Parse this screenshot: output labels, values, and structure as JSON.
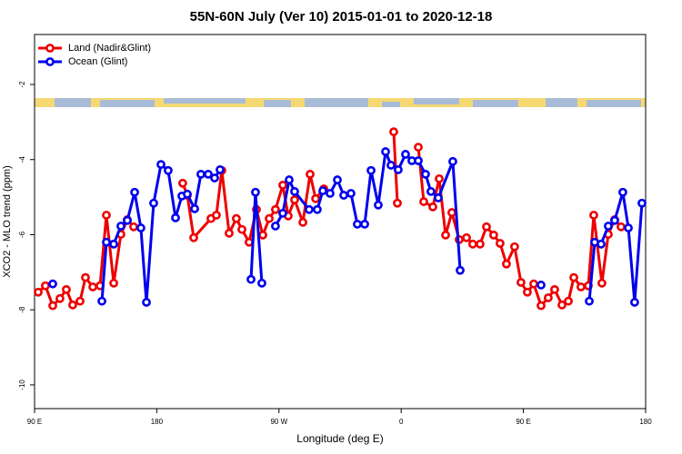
{
  "chart_data": {
    "type": "line",
    "title": "55N-60N July (Ver 10)   2015-01-01 to 2020-12-18",
    "xlabel": "Longitude (deg E)",
    "ylabel": "XCO2 - MLO trend (ppm)",
    "xlim": [
      90,
      540
    ],
    "xticks": [
      {
        "value": 90,
        "label": "90 E"
      },
      {
        "value": 180,
        "label": "180"
      },
      {
        "value": 270,
        "label": "90 W"
      },
      {
        "value": 360,
        "label": "0"
      },
      {
        "value": 450,
        "label": "90 E"
      },
      {
        "value": 540,
        "label": "180"
      }
    ],
    "ylim": [
      -10.63,
      -0.67
    ],
    "yticks": [
      -2,
      -4,
      -6,
      -8,
      -10
    ],
    "legend": "upper left",
    "series": [
      {
        "name": "Land (Nadir&Glint)",
        "color": "#ee0000",
        "x": [
          92.7,
          98.0,
          103.4,
          108.7,
          113.4,
          118.1,
          123.5,
          127.5,
          132.9,
          138.2,
          142.9,
          148.3,
          153.6,
          158.3,
          163.0,
          null,
          199.1,
          202.5,
          207.2,
          219.9,
          223.9,
          227.9,
          233.3,
          238.6,
          242.7,
          248.0,
          253.4,
          258.1,
          262.8,
          267.4,
          272.8,
          276.8,
          281.5,
          287.6,
          292.9,
          297.0,
          303.0,
          null,
          354.5,
          357.2,
          null,
          372.6,
          376.6,
          383.3,
          388.0,
          392.7,
          397.3,
          402.7,
          408.1,
          412.7,
          418.1,
          422.8,
          428.1,
          432.8,
          437.5,
          443.5,
          448.2,
          452.9,
          457.6,
          463.0,
          468.3,
          473.0,
          478.4,
          483.1,
          487.1,
          492.4,
          497.8,
          501.8,
          507.8,
          512.5,
          517.2,
          521.9
        ],
        "values": [
          -7.53,
          -7.36,
          -7.89,
          -7.7,
          -7.46,
          -7.87,
          -7.77,
          -7.14,
          -7.39,
          -7.36,
          -5.48,
          -7.29,
          -5.99,
          -5.6,
          -5.79,
          null,
          -4.63,
          -4.95,
          -6.08,
          -5.57,
          -5.48,
          -4.29,
          -5.96,
          -5.57,
          -5.86,
          -6.2,
          -5.33,
          -6.01,
          -5.57,
          -5.33,
          -4.68,
          -5.5,
          -5.07,
          -5.67,
          -4.39,
          -5.04,
          -4.78,
          null,
          -3.26,
          -5.16,
          null,
          -3.67,
          -5.12,
          -5.26,
          -4.51,
          -6.01,
          -5.41,
          -6.13,
          -6.08,
          -6.25,
          -6.25,
          -5.79,
          -6.01,
          -6.23,
          -6.78,
          -6.32,
          -7.27,
          -7.53,
          -7.31,
          -7.89,
          -7.68,
          -7.46,
          -7.87,
          -7.77,
          -7.14,
          -7.39,
          -7.36,
          -5.48,
          -7.29,
          -5.99,
          -5.6,
          -5.79
        ]
      },
      {
        "name": "Ocean (Glint)",
        "color": "#0000ee",
        "x": [
          103.4,
          null,
          139.6,
          142.9,
          148.3,
          153.6,
          158.3,
          163.7,
          168.3,
          172.4,
          177.7,
          183.1,
          188.4,
          193.8,
          198.5,
          202.5,
          207.9,
          212.5,
          217.9,
          222.6,
          226.6,
          null,
          249.4,
          252.7,
          257.4,
          null,
          267.4,
          272.8,
          277.5,
          281.5,
          292.2,
          298.2,
          302.3,
          307.6,
          313.0,
          317.7,
          323.0,
          327.7,
          333.1,
          337.8,
          343.1,
          348.5,
          352.5,
          357.8,
          363.2,
          367.9,
          372.6,
          377.9,
          381.9,
          387.3,
          398.0,
          403.4,
          null,
          463.0,
          null,
          498.5,
          502.5,
          507.2,
          512.5,
          517.2,
          523.2,
          527.3,
          531.9,
          537.3
        ],
        "values": [
          -7.31,
          null,
          -7.77,
          -6.2,
          -6.25,
          -5.77,
          -5.62,
          -4.87,
          -5.82,
          -7.8,
          -5.16,
          -4.13,
          -4.29,
          -5.55,
          -4.97,
          -4.92,
          -5.31,
          -4.39,
          -4.39,
          -4.49,
          -4.27,
          null,
          -7.19,
          -4.87,
          -7.29,
          null,
          -5.77,
          -5.43,
          -4.54,
          -4.85,
          -5.33,
          -5.33,
          -4.83,
          -4.9,
          -4.54,
          -4.95,
          -4.9,
          -5.72,
          -5.72,
          -4.29,
          -5.21,
          -3.79,
          -4.15,
          -4.27,
          -3.86,
          -4.03,
          -4.03,
          -4.39,
          -4.85,
          -5.02,
          -4.05,
          -6.95,
          null,
          -7.34,
          null,
          -7.77,
          -6.2,
          -6.25,
          -5.77,
          -5.62,
          -4.87,
          -5.82,
          -7.8,
          -5.16
        ]
      }
    ]
  }
}
